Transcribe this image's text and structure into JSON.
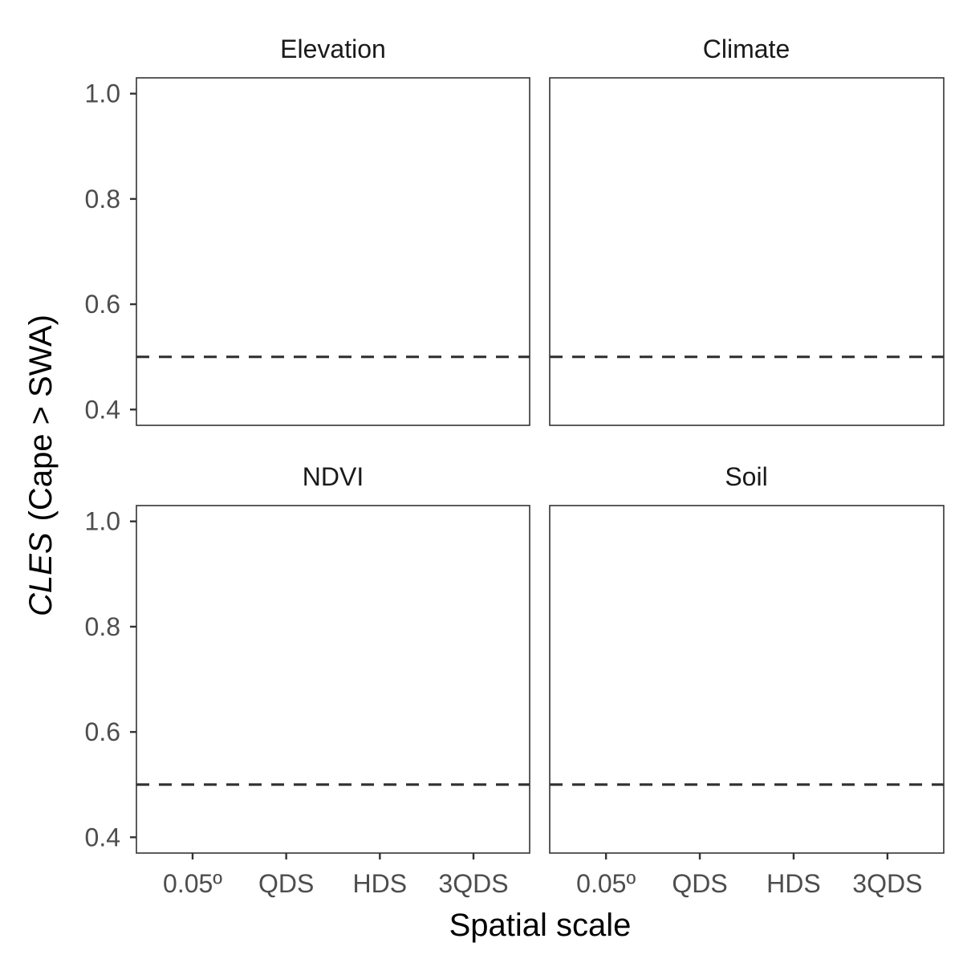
{
  "chart_data": {
    "type": "scatter",
    "facets": [
      {
        "name": "Elevation",
        "points": []
      },
      {
        "name": "Climate",
        "points": []
      },
      {
        "name": "NDVI",
        "points": []
      },
      {
        "name": "Soil",
        "points": []
      }
    ],
    "categories": [
      "0.05º",
      "QDS",
      "HDS",
      "3QDS"
    ],
    "y_ticks": [
      "0.4",
      "0.6",
      "0.8",
      "1.0"
    ],
    "y_tick_values": [
      0.4,
      0.6,
      0.8,
      1.0
    ],
    "ylim": [
      0.37,
      1.03
    ],
    "reference_line": {
      "y": 0.5,
      "style": "dashed"
    },
    "xlabel": "Spatial scale",
    "ylabel": {
      "italic": "CLES",
      "rest": "(Cape > SWA)"
    },
    "grid": false,
    "colors": {
      "panel_border": "#333333",
      "tick_text": "#4d4d4d",
      "ref_line": "#333333"
    }
  }
}
